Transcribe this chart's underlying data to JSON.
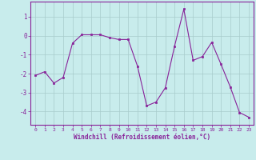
{
  "x": [
    0,
    1,
    2,
    3,
    4,
    5,
    6,
    7,
    8,
    9,
    10,
    11,
    12,
    13,
    14,
    15,
    16,
    17,
    18,
    19,
    20,
    21,
    22,
    23
  ],
  "y": [
    -2.1,
    -1.9,
    -2.5,
    -2.2,
    -0.4,
    0.05,
    0.05,
    0.05,
    -0.1,
    -0.2,
    -0.2,
    -1.6,
    -3.7,
    -3.5,
    -2.75,
    -0.55,
    1.4,
    -1.3,
    -1.1,
    -0.35,
    -1.5,
    -2.7,
    -4.05,
    -4.3
  ],
  "xlim": [
    -0.5,
    23.5
  ],
  "ylim": [
    -4.7,
    1.8
  ],
  "yticks": [
    1,
    0,
    -1,
    -2,
    -3,
    -4
  ],
  "xticks": [
    0,
    1,
    2,
    3,
    4,
    5,
    6,
    7,
    8,
    9,
    10,
    11,
    12,
    13,
    14,
    15,
    16,
    17,
    18,
    19,
    20,
    21,
    22,
    23
  ],
  "line_color": "#882299",
  "marker_color": "#882299",
  "bg_color": "#c8ecec",
  "grid_color": "#a8cccc",
  "xlabel": "Windchill (Refroidissement éolien,°C)",
  "xlabel_color": "#882299",
  "tick_color": "#882299",
  "spine_color": "#882299"
}
